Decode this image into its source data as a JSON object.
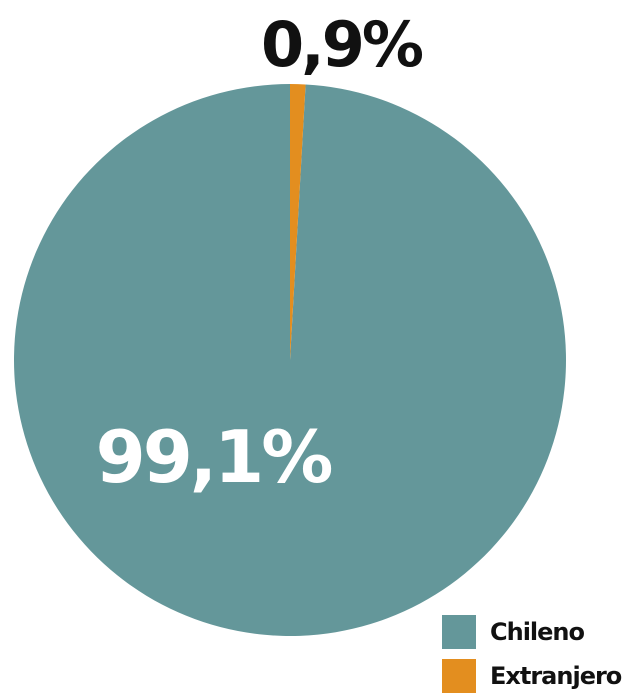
{
  "chart_data": {
    "type": "pie",
    "slices": [
      {
        "name": "Chileno",
        "value": 99.1,
        "label": "99,1%",
        "color": "#64979a"
      },
      {
        "name": "Extranjero",
        "value": 0.9,
        "label": "0,9%",
        "color": "#e38e1f"
      }
    ],
    "legend": {
      "placement": "bottom-right",
      "items": [
        "Chileno",
        "Extranjero"
      ]
    }
  }
}
